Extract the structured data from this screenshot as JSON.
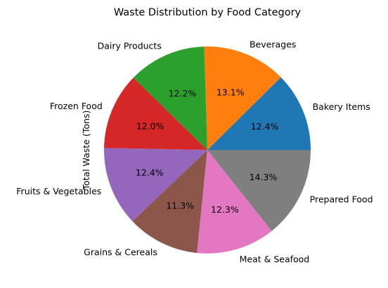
{
  "chart_data": {
    "type": "pie",
    "title": "Waste Distribution by Food Category",
    "ylabel": "Total Waste (Tons)",
    "categories": [
      "Bakery Items",
      "Beverages",
      "Dairy Products",
      "Frozen Food",
      "Fruits & Vegetables",
      "Grains & Cereals",
      "Meat & Seafood",
      "Prepared Food"
    ],
    "values": [
      12.4,
      13.1,
      12.2,
      12.0,
      12.4,
      11.3,
      12.3,
      14.3
    ],
    "percent_labels": [
      "12.4%",
      "13.1%",
      "12.2%",
      "12.0%",
      "12.4%",
      "11.3%",
      "12.3%",
      "14.3%"
    ],
    "colors": [
      "#1f77b4",
      "#ff7f0e",
      "#2ca02c",
      "#d62728",
      "#9467bd",
      "#8c564b",
      "#e377c2",
      "#7f7f7f"
    ]
  }
}
